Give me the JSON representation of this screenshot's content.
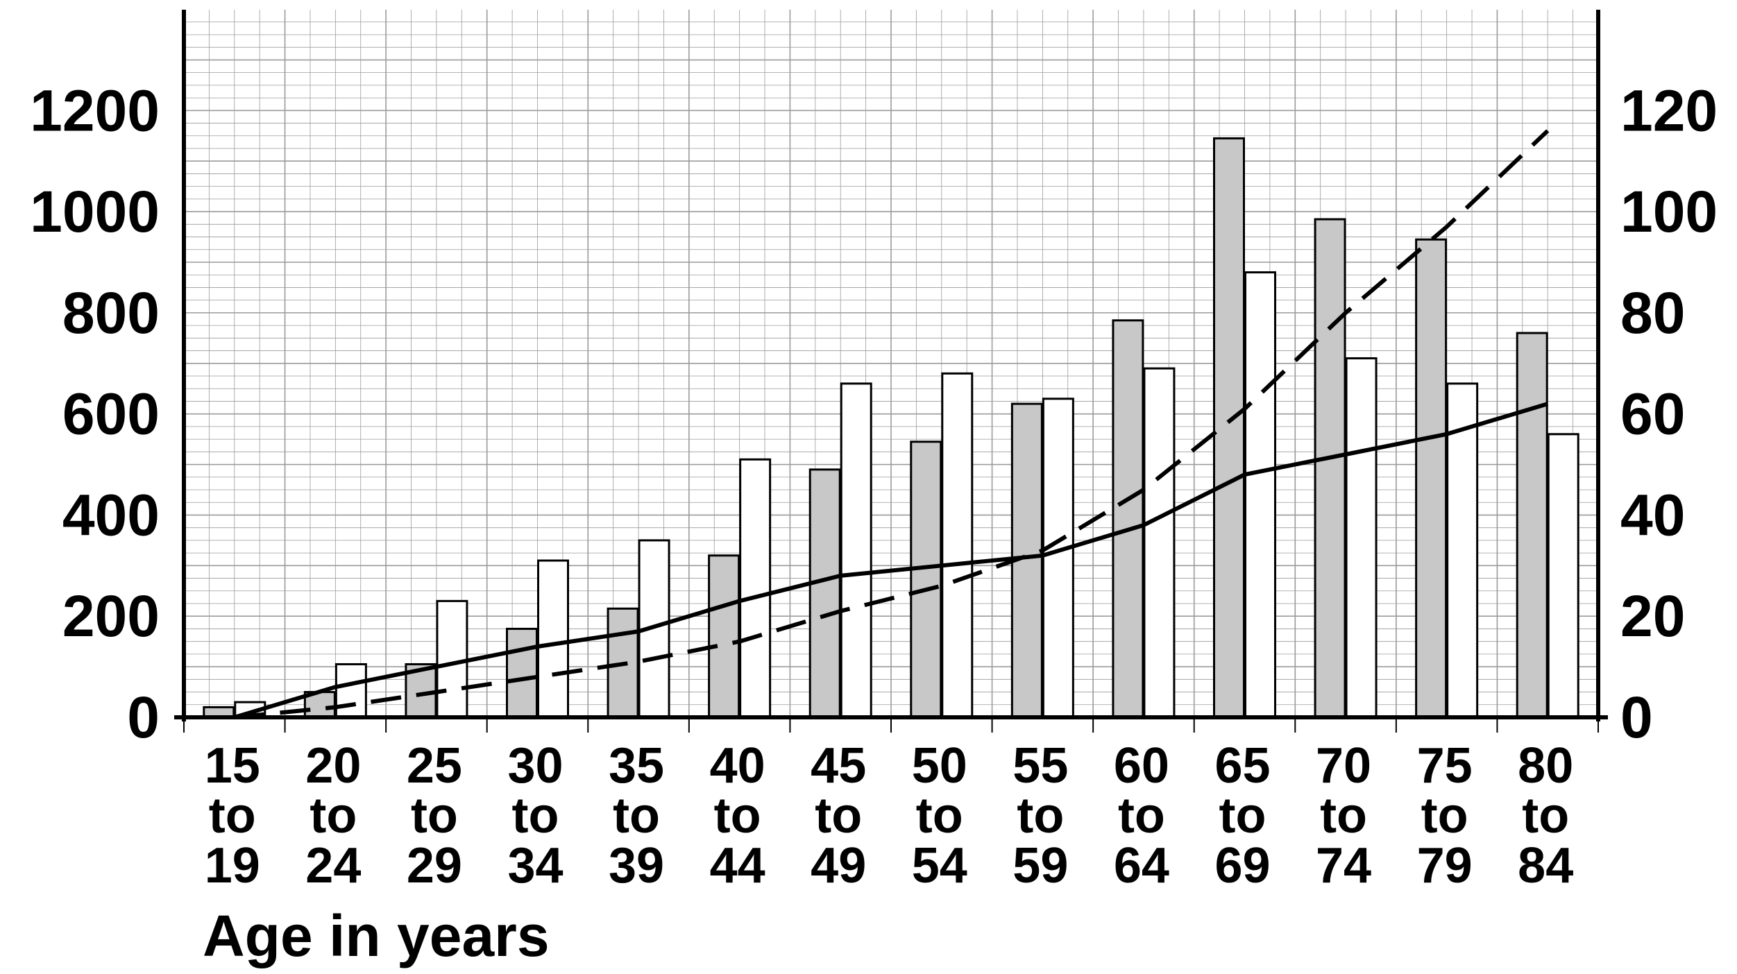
{
  "chart_data": {
    "type": "bar",
    "title": "",
    "xlabel": "Age in years",
    "ylabel": "",
    "y2label": "",
    "categories": [
      "15 to 19",
      "20 to 24",
      "25 to 29",
      "30 to 34",
      "35 to 39",
      "40 to 44",
      "45 to 49",
      "50 to 54",
      "55 to 59",
      "60 to 64",
      "65 to 69",
      "70 to 74",
      "75 to 79",
      "80 to 84"
    ],
    "category_lines": [
      [
        "15",
        "to",
        "19"
      ],
      [
        "20",
        "to",
        "24"
      ],
      [
        "25",
        "to",
        "29"
      ],
      [
        "30",
        "to",
        "34"
      ],
      [
        "35",
        "to",
        "39"
      ],
      [
        "40",
        "to",
        "44"
      ],
      [
        "45",
        "to",
        "49"
      ],
      [
        "50",
        "to",
        "54"
      ],
      [
        "55",
        "to",
        "59"
      ],
      [
        "60",
        "to",
        "64"
      ],
      [
        "65",
        "to",
        "69"
      ],
      [
        "70",
        "to",
        "74"
      ],
      [
        "75",
        "to",
        "79"
      ],
      [
        "80",
        "to",
        "84"
      ]
    ],
    "ylim": [
      0,
      1400
    ],
    "y2lim": [
      0,
      140
    ],
    "yticks": [
      0,
      200,
      400,
      600,
      800,
      1000,
      1200
    ],
    "y2ticks": [
      0,
      20,
      40,
      60,
      80,
      100,
      120
    ],
    "grid": true,
    "legend": "none",
    "series": [
      {
        "type": "bar",
        "axis": "left",
        "fill": "#c8c8c8",
        "values": [
          20,
          50,
          105,
          175,
          215,
          320,
          490,
          545,
          620,
          785,
          1145,
          985,
          945,
          760
        ]
      },
      {
        "type": "bar",
        "axis": "left",
        "fill": "#ffffff",
        "values": [
          30,
          105,
          230,
          310,
          350,
          510,
          660,
          680,
          630,
          690,
          880,
          710,
          660,
          560
        ]
      },
      {
        "type": "line",
        "axis": "right",
        "style": "solid",
        "values": [
          0,
          6,
          10,
          14,
          17,
          23,
          28,
          30,
          32,
          38,
          48,
          52,
          56,
          62
        ]
      },
      {
        "type": "line",
        "axis": "right",
        "style": "dashed",
        "values": [
          0,
          2,
          5,
          8,
          11,
          15,
          21,
          26,
          33,
          45,
          61,
          80,
          97,
          116
        ]
      }
    ]
  }
}
